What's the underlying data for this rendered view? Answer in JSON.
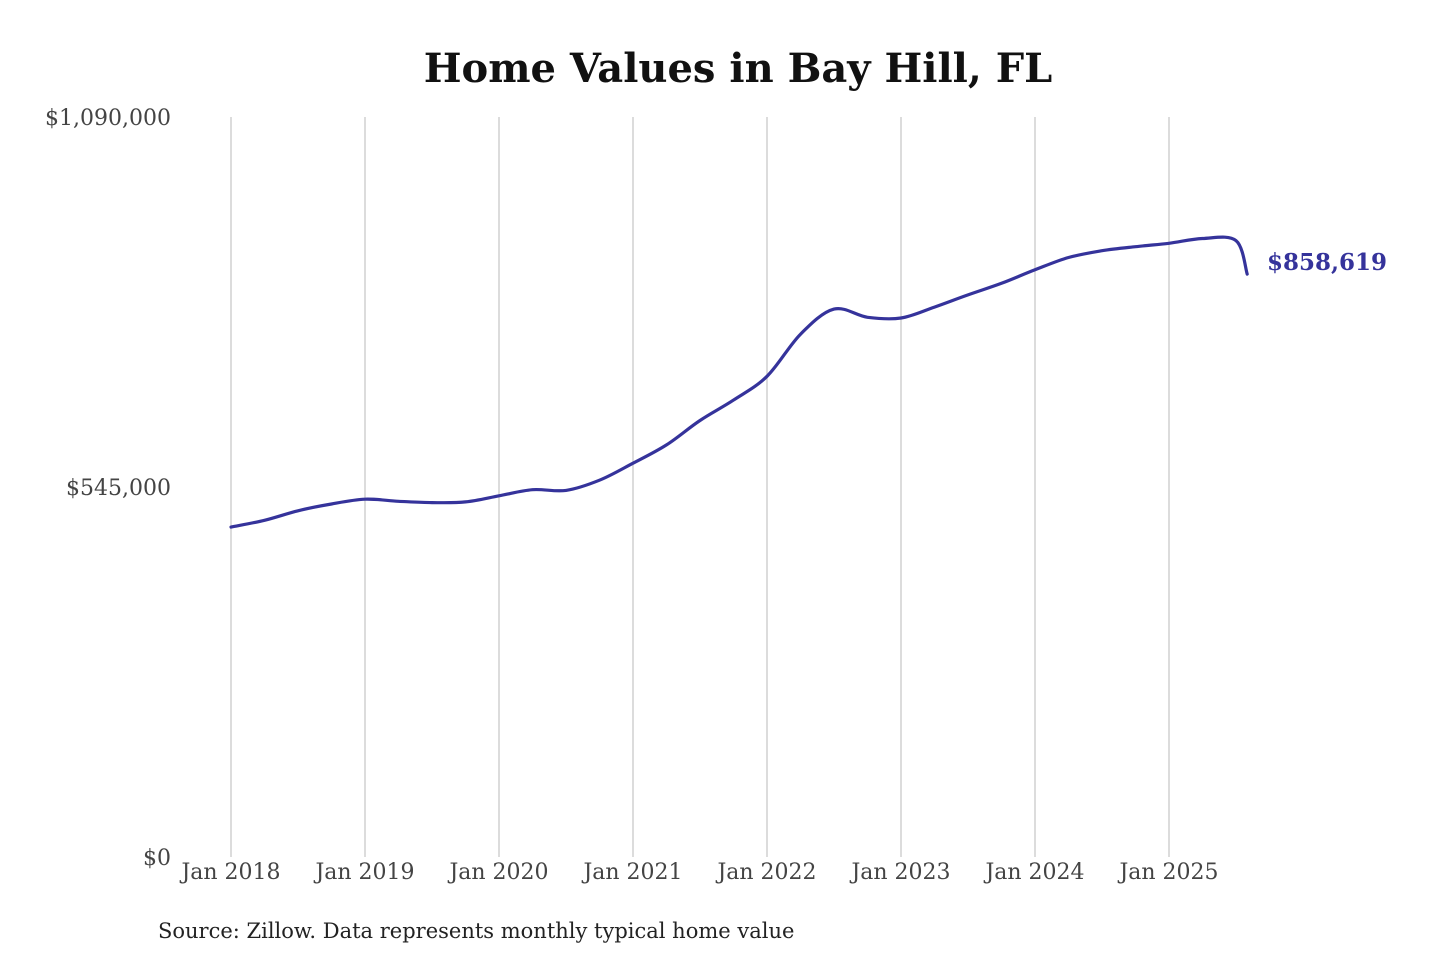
{
  "chart_data": {
    "type": "line",
    "title": "Home Values in Bay Hill, FL",
    "source": "Source: Zillow. Data represents monthly typical home value",
    "ylim": [
      0,
      1090000
    ],
    "y_ticks": [
      {
        "value": 0,
        "label": "$0"
      },
      {
        "value": 545000,
        "label": "$545,000"
      },
      {
        "value": 1090000,
        "label": "$1,090,000"
      }
    ],
    "x_ticks": [
      {
        "value": "2018-01",
        "label": "Jan 2018"
      },
      {
        "value": "2019-01",
        "label": "Jan 2019"
      },
      {
        "value": "2020-01",
        "label": "Jan 2020"
      },
      {
        "value": "2021-01",
        "label": "Jan 2021"
      },
      {
        "value": "2022-01",
        "label": "Jan 2022"
      },
      {
        "value": "2023-01",
        "label": "Jan 2023"
      },
      {
        "value": "2024-01",
        "label": "Jan 2024"
      },
      {
        "value": "2025-01",
        "label": "Jan 2025"
      }
    ],
    "grid": {
      "vertical": true,
      "horizontal": false
    },
    "series_color": "#35339b",
    "end_label": "$858,619",
    "series": [
      {
        "x": [
          "2018-01",
          "2018-04",
          "2018-07",
          "2018-10",
          "2019-01",
          "2019-04",
          "2019-07",
          "2019-10",
          "2020-01",
          "2020-04",
          "2020-07",
          "2020-10",
          "2021-01",
          "2021-04",
          "2021-07",
          "2021-10",
          "2022-01",
          "2022-04",
          "2022-07",
          "2022-10",
          "2023-01",
          "2023-04",
          "2023-07",
          "2023-10",
          "2024-01",
          "2024-04",
          "2024-07",
          "2024-10",
          "2025-01",
          "2025-04",
          "2025-07",
          "2025-08"
        ],
        "y": [
          486000,
          496000,
          510000,
          520000,
          527000,
          524000,
          522000,
          523000,
          532000,
          541000,
          540000,
          555000,
          580000,
          607000,
          643000,
          673000,
          708000,
          770000,
          807000,
          795000,
          794000,
          810000,
          828000,
          845000,
          865000,
          883000,
          893000,
          899000,
          904000,
          911000,
          908000,
          858619
        ]
      }
    ]
  }
}
